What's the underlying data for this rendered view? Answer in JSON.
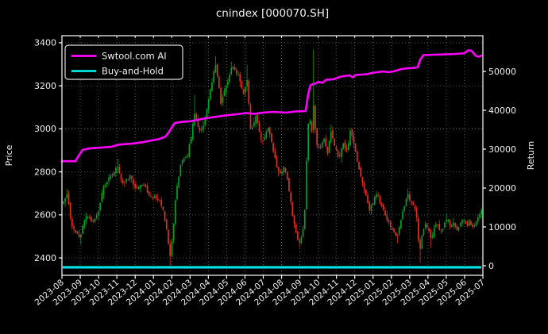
{
  "title": "cnindex [000070.SH]",
  "axes": {
    "left": {
      "label": "Price",
      "ticks": [
        2400,
        2600,
        2800,
        3000,
        3200,
        3400
      ],
      "range": [
        2319,
        3433
      ]
    },
    "right": {
      "label": "Return",
      "ticks": [
        0,
        10000,
        20000,
        30000,
        40000,
        50000
      ],
      "range": [
        -2450,
        59200
      ]
    },
    "x": {
      "labels": [
        "2023-08",
        "2023-09",
        "2023-10",
        "2023-11",
        "2023-12",
        "2024-01",
        "2024-02",
        "2024-03",
        "2024-04",
        "2024-05",
        "2024-06",
        "2024-07",
        "2024-08",
        "2024-09",
        "2024-10",
        "2024-11",
        "2024-12",
        "2025-01",
        "2025-02",
        "2025-03",
        "2025-04",
        "2025-05",
        "2025-06",
        "2025-07"
      ]
    }
  },
  "legend": [
    {
      "label": "Swtool.com AI",
      "color": "#ff00ff"
    },
    {
      "label": "Buy-and-Hold",
      "color": "#00e5e5"
    }
  ],
  "chart_data": {
    "type": "candlestick+line",
    "xlabel_unit": "month",
    "grid": true,
    "legend_position": "upper-left",
    "colors": {
      "up": "#00a224",
      "down": "#dc3222",
      "ai": "#ff00ff",
      "buy_hold": "#00e5e5",
      "grid": "#565656",
      "spine": "#ffffff",
      "background": "#000000",
      "text": "#f0f0f0"
    },
    "candle_count": 240,
    "t_start": 0.08,
    "t_end": 22.92,
    "price_anchors": [
      [
        0.0,
        2650,
        null,
        null
      ],
      [
        0.26,
        2700,
        2720,
        null
      ],
      [
        0.52,
        2560,
        null,
        null
      ],
      [
        0.74,
        2520,
        null,
        null
      ],
      [
        1.0,
        2495,
        null,
        2462
      ],
      [
        1.3,
        2600,
        null,
        null
      ],
      [
        1.65,
        2560,
        null,
        null
      ],
      [
        2.0,
        2620,
        null,
        null
      ],
      [
        2.3,
        2740,
        null,
        null
      ],
      [
        2.69,
        2780,
        null,
        null
      ],
      [
        3.0,
        2830,
        2862,
        null
      ],
      [
        3.34,
        2740,
        null,
        null
      ],
      [
        3.69,
        2780,
        null,
        null
      ],
      [
        4.08,
        2720,
        null,
        null
      ],
      [
        4.43,
        2745,
        null,
        null
      ],
      [
        4.77,
        2690,
        null,
        null
      ],
      [
        5.12,
        2680,
        null,
        null
      ],
      [
        5.47,
        2645,
        null,
        null
      ],
      [
        5.73,
        2530,
        null,
        null
      ],
      [
        5.9,
        2395,
        null,
        2360
      ],
      [
        6.08,
        2540,
        null,
        null
      ],
      [
        6.25,
        2715,
        null,
        null
      ],
      [
        6.51,
        2845,
        null,
        null
      ],
      [
        6.81,
        2865,
        null,
        null
      ],
      [
        7.03,
        2945,
        null,
        null
      ],
      [
        7.25,
        3075,
        3158,
        null
      ],
      [
        7.55,
        2985,
        null,
        null
      ],
      [
        7.81,
        3040,
        null,
        null
      ],
      [
        8.12,
        3190,
        null,
        null
      ],
      [
        8.42,
        3305,
        3338,
        null
      ],
      [
        8.68,
        3115,
        null,
        null
      ],
      [
        8.94,
        3195,
        null,
        null
      ],
      [
        9.29,
        3285,
        3312,
        null
      ],
      [
        9.64,
        3255,
        null,
        null
      ],
      [
        9.9,
        3160,
        null,
        null
      ],
      [
        10.11,
        3230,
        3298,
        null
      ],
      [
        10.33,
        2975,
        null,
        null
      ],
      [
        10.59,
        3060,
        null,
        null
      ],
      [
        10.94,
        2935,
        null,
        null
      ],
      [
        11.28,
        3015,
        null,
        null
      ],
      [
        11.63,
        2865,
        null,
        null
      ],
      [
        11.89,
        2780,
        null,
        null
      ],
      [
        12.15,
        2825,
        null,
        null
      ],
      [
        12.41,
        2715,
        null,
        null
      ],
      [
        12.67,
        2560,
        null,
        null
      ],
      [
        12.89,
        2490,
        null,
        null
      ],
      [
        13.02,
        2468,
        null,
        2448
      ],
      [
        13.24,
        2555,
        null,
        null
      ],
      [
        13.37,
        2870,
        null,
        null
      ],
      [
        13.5,
        3085,
        null,
        null
      ],
      [
        13.63,
        2975,
        null,
        null
      ],
      [
        13.76,
        3115,
        3368,
        null
      ],
      [
        13.89,
        2935,
        null,
        null
      ],
      [
        14.11,
        2905,
        null,
        null
      ],
      [
        14.32,
        2955,
        null,
        null
      ],
      [
        14.5,
        2890,
        null,
        null
      ],
      [
        14.71,
        2995,
        3020,
        null
      ],
      [
        14.93,
        2905,
        null,
        null
      ],
      [
        15.15,
        2870,
        null,
        null
      ],
      [
        15.36,
        2935,
        null,
        null
      ],
      [
        15.58,
        2895,
        null,
        null
      ],
      [
        15.75,
        2985,
        3005,
        null
      ],
      [
        15.93,
        2945,
        null,
        null
      ],
      [
        16.15,
        2845,
        null,
        null
      ],
      [
        16.36,
        2760,
        null,
        null
      ],
      [
        16.58,
        2700,
        null,
        null
      ],
      [
        16.8,
        2615,
        null,
        null
      ],
      [
        17.01,
        2665,
        null,
        null
      ],
      [
        17.23,
        2700,
        null,
        null
      ],
      [
        17.45,
        2640,
        null,
        null
      ],
      [
        17.66,
        2600,
        null,
        null
      ],
      [
        17.88,
        2560,
        null,
        null
      ],
      [
        18.1,
        2520,
        null,
        null
      ],
      [
        18.32,
        2498,
        null,
        2468
      ],
      [
        18.53,
        2580,
        null,
        null
      ],
      [
        18.75,
        2650,
        null,
        null
      ],
      [
        18.88,
        2700,
        2722,
        null
      ],
      [
        19.05,
        2660,
        null,
        null
      ],
      [
        19.23,
        2648,
        null,
        null
      ],
      [
        19.4,
        2585,
        null,
        null
      ],
      [
        19.53,
        2420,
        null,
        2378
      ],
      [
        19.66,
        2505,
        null,
        null
      ],
      [
        19.83,
        2560,
        null,
        null
      ],
      [
        20.01,
        2545,
        null,
        null
      ],
      [
        20.18,
        2475,
        null,
        2446
      ],
      [
        20.35,
        2540,
        null,
        null
      ],
      [
        20.53,
        2562,
        null,
        null
      ],
      [
        20.7,
        2518,
        null,
        null
      ],
      [
        20.88,
        2550,
        null,
        null
      ],
      [
        21.05,
        2585,
        2606,
        null
      ],
      [
        21.22,
        2540,
        null,
        null
      ],
      [
        21.4,
        2560,
        null,
        null
      ],
      [
        21.57,
        2522,
        null,
        null
      ],
      [
        21.74,
        2558,
        null,
        null
      ],
      [
        21.92,
        2582,
        null,
        null
      ],
      [
        22.09,
        2548,
        null,
        null
      ],
      [
        22.26,
        2572,
        null,
        null
      ],
      [
        22.44,
        2538,
        null,
        null
      ],
      [
        22.61,
        2560,
        null,
        null
      ],
      [
        22.78,
        2600,
        null,
        null
      ],
      [
        22.92,
        2625,
        null,
        null
      ]
    ],
    "series": [
      {
        "name": "Swtool.com AI",
        "axis": "right",
        "anchors": [
          [
            0.0,
            26900
          ],
          [
            0.74,
            26900
          ],
          [
            0.91,
            28300
          ],
          [
            1.13,
            29800
          ],
          [
            1.48,
            30200
          ],
          [
            2.69,
            30600
          ],
          [
            3.13,
            31200
          ],
          [
            3.78,
            31400
          ],
          [
            4.43,
            31800
          ],
          [
            4.95,
            32300
          ],
          [
            5.3,
            32600
          ],
          [
            5.64,
            33200
          ],
          [
            5.82,
            34200
          ],
          [
            5.99,
            35500
          ],
          [
            6.16,
            36700
          ],
          [
            6.51,
            37000
          ],
          [
            7.03,
            37200
          ],
          [
            7.68,
            37800
          ],
          [
            8.33,
            38300
          ],
          [
            8.98,
            38700
          ],
          [
            9.55,
            39000
          ],
          [
            10.07,
            39300
          ],
          [
            10.5,
            39100
          ],
          [
            10.94,
            39400
          ],
          [
            11.59,
            39600
          ],
          [
            12.24,
            39400
          ],
          [
            12.76,
            39700
          ],
          [
            13.32,
            39800
          ],
          [
            13.45,
            44000
          ],
          [
            13.58,
            46500
          ],
          [
            13.8,
            46800
          ],
          [
            14.02,
            47300
          ],
          [
            14.24,
            47100
          ],
          [
            14.45,
            47900
          ],
          [
            14.84,
            48000
          ],
          [
            15.19,
            48600
          ],
          [
            15.41,
            48800
          ],
          [
            15.71,
            49000
          ],
          [
            15.89,
            48500
          ],
          [
            16.06,
            49100
          ],
          [
            16.67,
            49300
          ],
          [
            16.93,
            49600
          ],
          [
            17.23,
            49800
          ],
          [
            17.53,
            50000
          ],
          [
            17.88,
            49800
          ],
          [
            18.19,
            50100
          ],
          [
            18.53,
            50600
          ],
          [
            18.84,
            50800
          ],
          [
            19.18,
            50900
          ],
          [
            19.44,
            51100
          ],
          [
            19.57,
            53000
          ],
          [
            19.75,
            54200
          ],
          [
            20.27,
            54300
          ],
          [
            20.92,
            54400
          ],
          [
            21.57,
            54500
          ],
          [
            22.0,
            54700
          ],
          [
            22.18,
            55400
          ],
          [
            22.35,
            55400
          ],
          [
            22.48,
            54800
          ],
          [
            22.61,
            54000
          ],
          [
            22.78,
            53800
          ],
          [
            22.92,
            54100
          ]
        ]
      },
      {
        "name": "Buy-and-Hold",
        "axis": "right",
        "flat_value": -400
      }
    ]
  }
}
